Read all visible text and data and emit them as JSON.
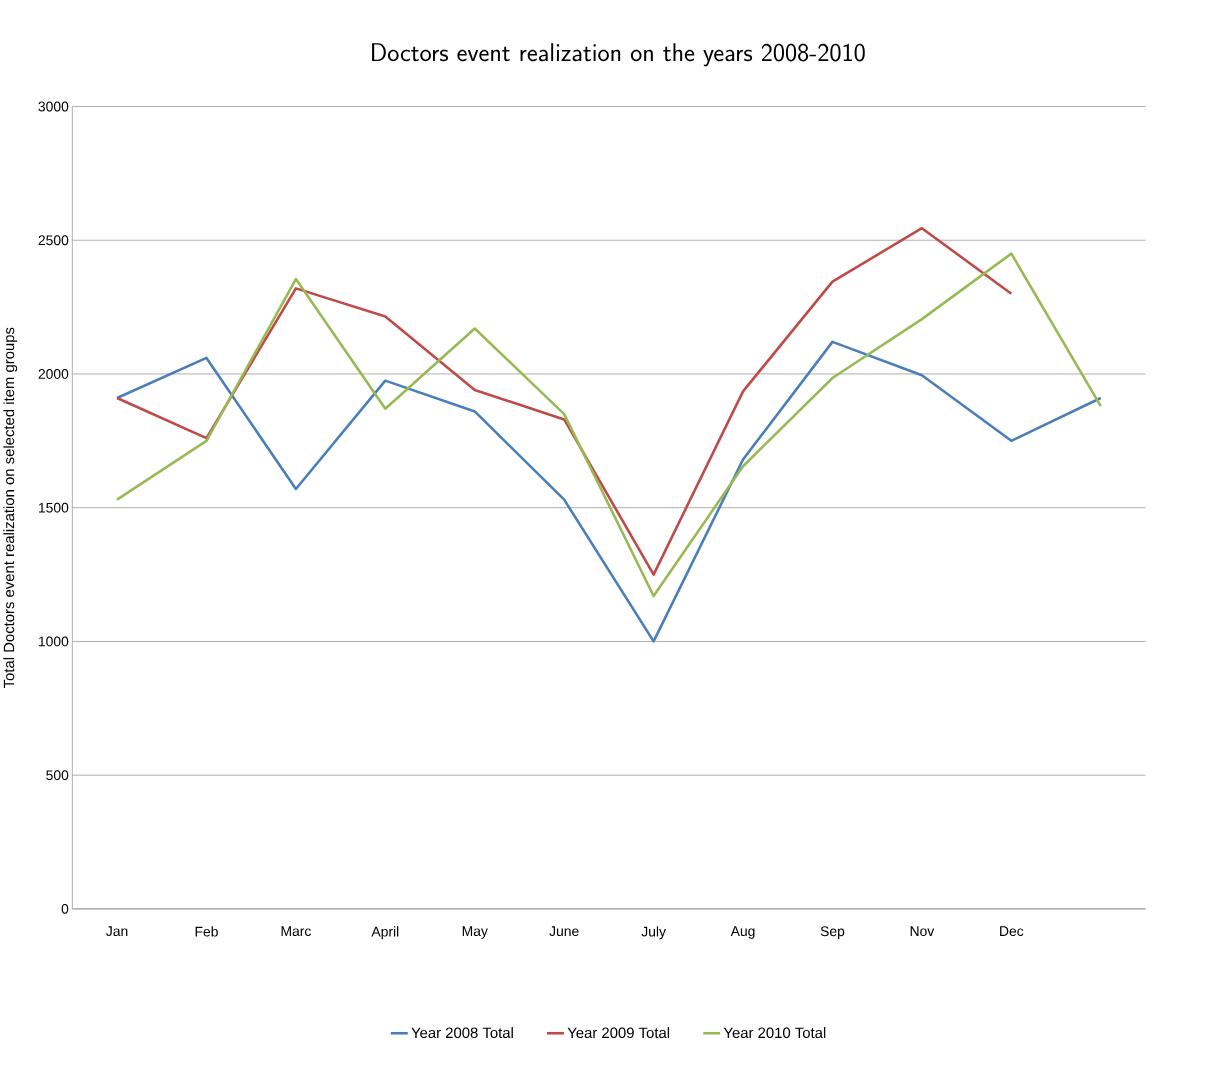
{
  "chart_data": {
    "type": "line",
    "title": "Doctors event realization on the years 2008-2010",
    "ylabel": "Total Doctors event realization on selected item groups",
    "categories": [
      "Jan",
      "Feb",
      "Marc",
      "April",
      "May",
      "June",
      "July",
      "Aug",
      "Sep",
      "Nov",
      "Dec",
      null
    ],
    "series": [
      {
        "name": "Year 2008 Total",
        "color": "#4a7ebb",
        "values": [
          1910,
          2060,
          1570,
          1975,
          1860,
          1530,
          1000,
          1680,
          2120,
          1995,
          1750,
          1910
        ]
      },
      {
        "name": "Year 2009 Total",
        "color": "#be4b48",
        "values": [
          1910,
          1760,
          2320,
          2215,
          1940,
          1830,
          1250,
          1935,
          2345,
          2545,
          2300,
          null
        ]
      },
      {
        "name": "Year 2010 Total",
        "color": "#98b954",
        "values": [
          1530,
          1750,
          2355,
          1870,
          2170,
          1850,
          1170,
          1655,
          1985,
          2205,
          2450,
          1880
        ]
      }
    ],
    "ylim": [
      0,
      3000
    ],
    "yticks": [
      0,
      500,
      1000,
      1500,
      2000,
      2500,
      3000
    ],
    "grid": "y",
    "legend": "bottom",
    "marker": "none",
    "line_style": "solid"
  }
}
